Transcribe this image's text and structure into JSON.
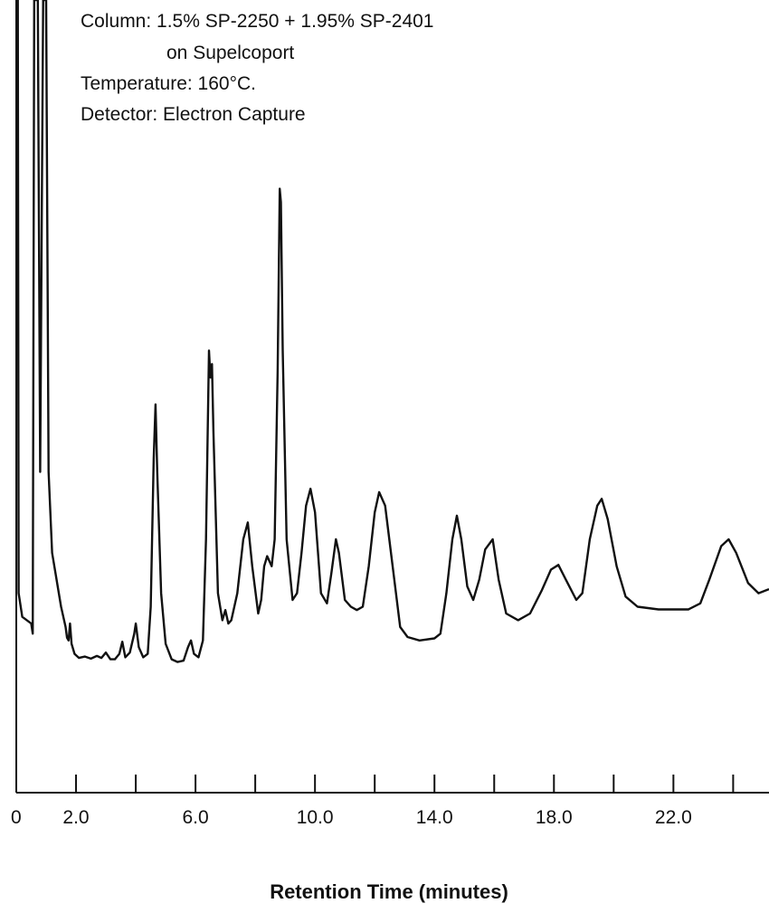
{
  "chart_data": {
    "type": "line",
    "title": "",
    "xlabel": "Retention Time (minutes)",
    "ylabel": "",
    "xlim": [
      0,
      25.2
    ],
    "ylim": [
      0,
      100
    ],
    "grid": false,
    "annotations": [
      "Column:  1.5% SP-2250 + 1.95% SP-2401",
      "on Supelcoport",
      "Temperature:  160°C.",
      "Detector: Electron Capture"
    ],
    "tick_labels": [
      {
        "x": 0,
        "label": "0"
      },
      {
        "x": 2,
        "label": "2.0"
      },
      {
        "x": 6,
        "label": "6.0"
      },
      {
        "x": 10,
        "label": "10.0"
      },
      {
        "x": 14,
        "label": "14.0"
      },
      {
        "x": 18,
        "label": "18.0"
      },
      {
        "x": 22,
        "label": "22.0"
      }
    ],
    "minor_ticks": [
      4,
      8,
      12,
      16,
      20,
      24
    ],
    "series": [
      {
        "values": [
          [
            0.05,
            100
          ],
          [
            0.08,
            12
          ],
          [
            0.2,
            8.5
          ],
          [
            0.5,
            7.5
          ],
          [
            0.55,
            6
          ],
          [
            0.6,
            100
          ],
          [
            0.72,
            100
          ],
          [
            0.8,
            30
          ],
          [
            0.9,
            100
          ],
          [
            1.0,
            100
          ],
          [
            1.08,
            30
          ],
          [
            1.2,
            18
          ],
          [
            1.5,
            10
          ],
          [
            1.65,
            7
          ],
          [
            1.7,
            5.4
          ],
          [
            1.75,
            5
          ],
          [
            1.8,
            7.5
          ],
          [
            1.85,
            4.5
          ],
          [
            1.95,
            3
          ],
          [
            2.1,
            2.4
          ],
          [
            2.3,
            2.6
          ],
          [
            2.5,
            2.3
          ],
          [
            2.7,
            2.7
          ],
          [
            2.85,
            2.4
          ],
          [
            3.0,
            3.2
          ],
          [
            3.15,
            2.2
          ],
          [
            3.3,
            2.2
          ],
          [
            3.45,
            3
          ],
          [
            3.55,
            4.8
          ],
          [
            3.65,
            2.5
          ],
          [
            3.8,
            3.2
          ],
          [
            3.95,
            6
          ],
          [
            4.0,
            7.5
          ],
          [
            4.1,
            4
          ],
          [
            4.25,
            2.5
          ],
          [
            4.4,
            3
          ],
          [
            4.5,
            10
          ],
          [
            4.6,
            32
          ],
          [
            4.66,
            40
          ],
          [
            4.72,
            30
          ],
          [
            4.85,
            12
          ],
          [
            5.0,
            4.5
          ],
          [
            5.2,
            2.2
          ],
          [
            5.4,
            1.8
          ],
          [
            5.6,
            2
          ],
          [
            5.75,
            4
          ],
          [
            5.85,
            5
          ],
          [
            5.95,
            3
          ],
          [
            6.1,
            2.5
          ],
          [
            6.25,
            5
          ],
          [
            6.35,
            20
          ],
          [
            6.45,
            48
          ],
          [
            6.5,
            44
          ],
          [
            6.55,
            46
          ],
          [
            6.6,
            36
          ],
          [
            6.75,
            12
          ],
          [
            6.9,
            8
          ],
          [
            7.0,
            9.5
          ],
          [
            7.1,
            7.5
          ],
          [
            7.2,
            8
          ],
          [
            7.4,
            12
          ],
          [
            7.6,
            20
          ],
          [
            7.75,
            22.5
          ],
          [
            7.9,
            16
          ],
          [
            8.1,
            9
          ],
          [
            8.2,
            11
          ],
          [
            8.3,
            16
          ],
          [
            8.4,
            17.5
          ],
          [
            8.55,
            16
          ],
          [
            8.65,
            20
          ],
          [
            8.75,
            45
          ],
          [
            8.82,
            72
          ],
          [
            8.86,
            70
          ],
          [
            8.92,
            48
          ],
          [
            9.05,
            20
          ],
          [
            9.25,
            11
          ],
          [
            9.4,
            12
          ],
          [
            9.55,
            18
          ],
          [
            9.7,
            25
          ],
          [
            9.85,
            27.5
          ],
          [
            10.0,
            24
          ],
          [
            10.2,
            12
          ],
          [
            10.4,
            10.5
          ],
          [
            10.55,
            15
          ],
          [
            10.7,
            20
          ],
          [
            10.8,
            18
          ],
          [
            11.0,
            11
          ],
          [
            11.2,
            10
          ],
          [
            11.4,
            9.5
          ],
          [
            11.6,
            10
          ],
          [
            11.8,
            16
          ],
          [
            12.0,
            24
          ],
          [
            12.15,
            27
          ],
          [
            12.35,
            25
          ],
          [
            12.6,
            16
          ],
          [
            12.85,
            7
          ],
          [
            13.1,
            5.5
          ],
          [
            13.5,
            5
          ],
          [
            14.0,
            5.3
          ],
          [
            14.2,
            6
          ],
          [
            14.4,
            12
          ],
          [
            14.6,
            20
          ],
          [
            14.75,
            23.5
          ],
          [
            14.9,
            20
          ],
          [
            15.1,
            13
          ],
          [
            15.3,
            11
          ],
          [
            15.5,
            14
          ],
          [
            15.7,
            18.5
          ],
          [
            15.95,
            20
          ],
          [
            16.15,
            14
          ],
          [
            16.4,
            9
          ],
          [
            16.8,
            8
          ],
          [
            17.2,
            9
          ],
          [
            17.6,
            12.5
          ],
          [
            17.9,
            15.5
          ],
          [
            18.15,
            16.2
          ],
          [
            18.4,
            14
          ],
          [
            18.75,
            11
          ],
          [
            18.95,
            12
          ],
          [
            19.2,
            20
          ],
          [
            19.45,
            25
          ],
          [
            19.6,
            26
          ],
          [
            19.8,
            23
          ],
          [
            20.1,
            16
          ],
          [
            20.4,
            11.5
          ],
          [
            20.8,
            10
          ],
          [
            21.5,
            9.6
          ],
          [
            22.5,
            9.6
          ],
          [
            22.9,
            10.5
          ],
          [
            23.2,
            14
          ],
          [
            23.6,
            19
          ],
          [
            23.85,
            20
          ],
          [
            24.1,
            18
          ],
          [
            24.5,
            13.5
          ],
          [
            24.85,
            12
          ],
          [
            25.2,
            12.6
          ]
        ]
      }
    ]
  }
}
